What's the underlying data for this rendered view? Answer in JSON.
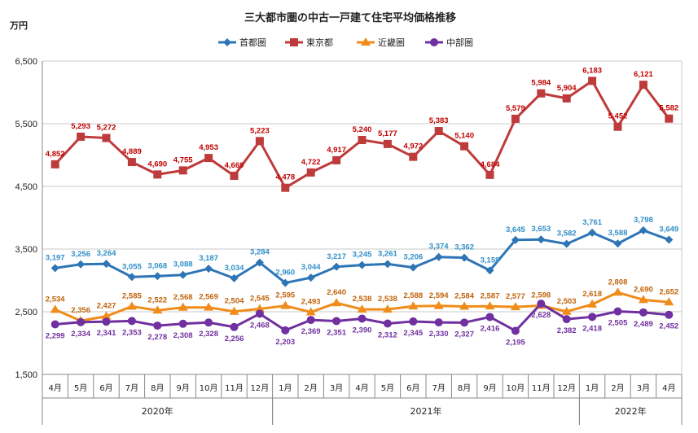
{
  "chart_data": {
    "type": "line",
    "title": "三大都市圏の中古一戸建て住宅平均価格推移",
    "unit_label": "万円",
    "ylim": [
      1500,
      6500
    ],
    "yticks": [
      "1,500",
      "2,500",
      "3,500",
      "4,500",
      "5,500",
      "6,500"
    ],
    "ytick_values": [
      1500,
      2500,
      3500,
      4500,
      5500,
      6500
    ],
    "grid": true,
    "legend_position": "top",
    "categories": [
      "4月",
      "5月",
      "6月",
      "7月",
      "8月",
      "9月",
      "10月",
      "11月",
      "12月",
      "1月",
      "2月",
      "3月",
      "4月",
      "5月",
      "6月",
      "7月",
      "8月",
      "9月",
      "10月",
      "11月",
      "12月",
      "1月",
      "2月",
      "3月",
      "4月"
    ],
    "years": [
      {
        "label": "2020年",
        "start": 0,
        "end": 8
      },
      {
        "label": "2021年",
        "start": 9,
        "end": 20
      },
      {
        "label": "2022年",
        "start": 21,
        "end": 24
      }
    ],
    "series": [
      {
        "name": "首都圏",
        "color": "#2E75B6",
        "label_color": "#2F8FC8",
        "marker": "diamond",
        "label_pos": "above",
        "values": [
          3197,
          3256,
          3264,
          3055,
          3068,
          3088,
          3187,
          3034,
          3284,
          2960,
          3044,
          3217,
          3245,
          3261,
          3206,
          3374,
          3362,
          3159,
          3645,
          3653,
          3582,
          3761,
          3588,
          3798,
          3649
        ],
        "labels": [
          "3,197",
          "3,256",
          "3,264",
          "3,055",
          "3,068",
          "3,088",
          "3,187",
          "3,034",
          "3,284",
          "2,960",
          "3,044",
          "3,217",
          "3,245",
          "3,261",
          "3,206",
          "3,374",
          "3,362",
          "3,159",
          "3,645",
          "3,653",
          "3,582",
          "3,761",
          "3,588",
          "3,798",
          "3,649"
        ]
      },
      {
        "name": "東京都",
        "color": "#BE3B3B",
        "label_color": "#C00000",
        "marker": "square",
        "label_pos": "above",
        "values": [
          4852,
          5293,
          5272,
          4889,
          4690,
          4755,
          4953,
          4669,
          5223,
          4478,
          4722,
          4917,
          5240,
          5177,
          4972,
          5383,
          5140,
          4684,
          5579,
          5984,
          5904,
          6183,
          5452,
          6121,
          5582
        ],
        "labels": [
          "4,852",
          "5,293",
          "5,272",
          "4,889",
          "4,690",
          "4,755",
          "4,953",
          "4,669",
          "5,223",
          "4,478",
          "4,722",
          "4,917",
          "5,240",
          "5,177",
          "4,972",
          "5,383",
          "5,140",
          "4,684",
          "5,579",
          "5,984",
          "5,904",
          "6,183",
          "5,452",
          "6,121",
          "5,582"
        ]
      },
      {
        "name": "近畿圏",
        "color": "#F08C1A",
        "label_color": "#C0630A",
        "marker": "triangle",
        "label_pos": "above",
        "values": [
          2534,
          2356,
          2427,
          2585,
          2522,
          2568,
          2569,
          2504,
          2545,
          2595,
          2493,
          2640,
          2538,
          2538,
          2588,
          2594,
          2584,
          2587,
          2577,
          2598,
          2503,
          2618,
          2808,
          2690,
          2652
        ],
        "labels": [
          "2,534",
          "2,356",
          "2,427",
          "2,585",
          "2,522",
          "2,568",
          "2,569",
          "2,504",
          "2,545",
          "2,595",
          "2,493",
          "2,640",
          "2,538",
          "2,538",
          "2,588",
          "2,594",
          "2,584",
          "2,587",
          "2,577",
          "2,598",
          "2,503",
          "2,618",
          "2,808",
          "2,690",
          "2,652"
        ]
      },
      {
        "name": "中部圏",
        "color": "#7030A0",
        "label_color": "#7030A0",
        "marker": "circle",
        "label_pos": "below",
        "values": [
          2299,
          2334,
          2341,
          2353,
          2278,
          2308,
          2328,
          2256,
          2468,
          2203,
          2369,
          2351,
          2390,
          2312,
          2345,
          2330,
          2327,
          2416,
          2195,
          2628,
          2382,
          2418,
          2505,
          2489,
          2452
        ],
        "labels": [
          "2,299",
          "2,334",
          "2,341",
          "2,353",
          "2,278",
          "2,308",
          "2,328",
          "2,256",
          "2,468",
          "2,203",
          "2,369",
          "2,351",
          "2,390",
          "2,312",
          "2,345",
          "2,330",
          "2,327",
          "2,416",
          "2,195",
          "2,628",
          "2,382",
          "2,418",
          "2,505",
          "2,489",
          "2,452"
        ]
      }
    ]
  }
}
